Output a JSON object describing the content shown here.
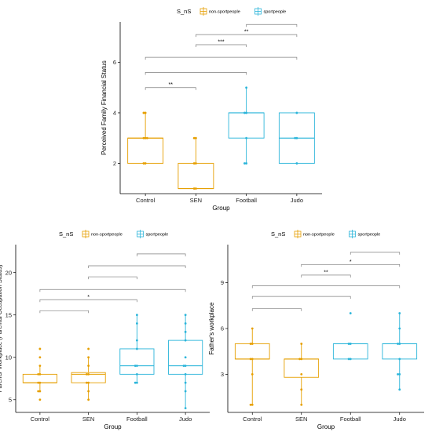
{
  "colors": {
    "non_sportpeople": "#E69F00",
    "sportpeople": "#2BB5DA",
    "bracket": "#7f7f7f"
  },
  "chart_data": [
    {
      "type": "box",
      "title": "",
      "legend": {
        "title": "S_nS",
        "placement": "top",
        "entries": [
          "non-sportpeople",
          "sportpeople"
        ]
      },
      "xlabel": "Group",
      "ylabel": "Perceived Family Financial Status",
      "categories": [
        "Control",
        "SEN",
        "Football",
        "Judo"
      ],
      "ylim": [
        0.8,
        7.6
      ],
      "yticks": [
        2,
        4,
        6
      ],
      "boxes": [
        {
          "category": "Control",
          "group": "non-sportpeople",
          "min": 2,
          "q1": 2,
          "median": 3,
          "q3": 3,
          "max": 4
        },
        {
          "category": "SEN",
          "group": "non-sportpeople",
          "min": 1,
          "q1": 1,
          "median": 1,
          "q3": 2,
          "max": 3
        },
        {
          "category": "Football",
          "group": "sportpeople",
          "min": 2,
          "q1": 3,
          "median": 4,
          "q3": 4,
          "max": 5
        },
        {
          "category": "Judo",
          "group": "sportpeople",
          "min": 2,
          "q1": 2,
          "median": 3,
          "q3": 4,
          "max": 4
        }
      ],
      "points": [
        {
          "category": "Control",
          "values": [
            2,
            2,
            3,
            3,
            3,
            4,
            4
          ]
        },
        {
          "category": "SEN",
          "values": [
            1,
            1,
            2,
            2,
            3,
            3
          ]
        },
        {
          "category": "Football",
          "values": [
            2,
            2,
            3,
            4,
            4,
            5
          ]
        },
        {
          "category": "Judo",
          "values": [
            2,
            3,
            3,
            4
          ]
        }
      ],
      "comparisons": [
        {
          "from": "Control",
          "to": "SEN",
          "y": 5.0,
          "label": "**"
        },
        {
          "from": "Control",
          "to": "Football",
          "y": 5.6,
          "label": ""
        },
        {
          "from": "Control",
          "to": "Judo",
          "y": 6.2,
          "label": ""
        },
        {
          "from": "SEN",
          "to": "Football",
          "y": 6.7,
          "label": "***"
        },
        {
          "from": "SEN",
          "to": "Judo",
          "y": 7.1,
          "label": "**"
        },
        {
          "from": "Football",
          "to": "Judo",
          "y": 7.5,
          "label": ""
        }
      ]
    },
    {
      "type": "box",
      "title": "",
      "legend": {
        "title": "S_nS",
        "placement": "top",
        "entries": [
          "non-sportpeople",
          "sportpeople"
        ]
      },
      "xlabel": "Group",
      "ylabel": "Parents' Workplace (Parental Occupation Status)",
      "categories": [
        "Control",
        "SEN",
        "Football",
        "Judo"
      ],
      "ylim": [
        3.5,
        23.3
      ],
      "yticks": [
        5,
        10,
        15,
        20
      ],
      "boxes": [
        {
          "category": "Control",
          "group": "non-sportpeople",
          "min": 6,
          "q1": 7,
          "median": 7,
          "q3": 8,
          "max": 9
        },
        {
          "category": "SEN",
          "group": "non-sportpeople",
          "min": 5,
          "q1": 7,
          "median": 8,
          "q3": 8.2,
          "max": 10
        },
        {
          "category": "Football",
          "group": "sportpeople",
          "min": 7,
          "q1": 8,
          "median": 9,
          "q3": 11,
          "max": 15
        },
        {
          "category": "Judo",
          "group": "sportpeople",
          "min": 4,
          "q1": 8,
          "median": 9,
          "q3": 12,
          "max": 15
        }
      ],
      "points": [
        {
          "category": "Control",
          "values": [
            5,
            6,
            6,
            7,
            7,
            8,
            8,
            9,
            10,
            11
          ]
        },
        {
          "category": "SEN",
          "values": [
            5,
            6,
            7,
            7,
            8,
            8,
            9,
            10,
            11
          ]
        },
        {
          "category": "Football",
          "values": [
            7,
            7,
            8,
            9,
            9,
            11,
            12,
            14,
            15
          ]
        },
        {
          "category": "Judo",
          "values": [
            4,
            6,
            7,
            8,
            9,
            9,
            10,
            12,
            13,
            14,
            15
          ]
        }
      ],
      "comparisons": [
        {
          "from": "Control",
          "to": "SEN",
          "y": 15.5,
          "label": ""
        },
        {
          "from": "Control",
          "to": "Football",
          "y": 16.8,
          "label": "*"
        },
        {
          "from": "Control",
          "to": "Judo",
          "y": 18.0,
          "label": ""
        },
        {
          "from": "SEN",
          "to": "Football",
          "y": 19.5,
          "label": ""
        },
        {
          "from": "SEN",
          "to": "Judo",
          "y": 20.8,
          "label": ""
        },
        {
          "from": "Football",
          "to": "Judo",
          "y": 22.2,
          "label": ""
        }
      ]
    },
    {
      "type": "box",
      "title": "",
      "legend": {
        "title": "S_nS",
        "placement": "top",
        "entries": [
          "non-sportpeople",
          "sportpeople"
        ]
      },
      "xlabel": "Group",
      "ylabel": "Father's workplace",
      "categories": [
        "Control",
        "SEN",
        "Football",
        "Judo"
      ],
      "ylim": [
        0.5,
        11.5
      ],
      "yticks": [
        3,
        6,
        9
      ],
      "boxes": [
        {
          "category": "Control",
          "group": "non-sportpeople",
          "min": 1,
          "q1": 4,
          "median": 4,
          "q3": 5,
          "max": 6
        },
        {
          "category": "SEN",
          "group": "non-sportpeople",
          "min": 1,
          "q1": 2.8,
          "median": 4,
          "q3": 4,
          "max": 5
        },
        {
          "category": "Football",
          "group": "sportpeople",
          "min": 4,
          "q1": 4,
          "median": 5,
          "q3": 5,
          "max": 5
        },
        {
          "category": "Judo",
          "group": "sportpeople",
          "min": 2,
          "q1": 4,
          "median": 5,
          "q3": 5,
          "max": 7
        }
      ],
      "points": [
        {
          "category": "Control",
          "values": [
            1,
            1,
            3,
            4,
            4,
            5,
            5,
            6
          ]
        },
        {
          "category": "SEN",
          "values": [
            1,
            2,
            3,
            4,
            4,
            5
          ]
        },
        {
          "category": "Football",
          "values": [
            4,
            4,
            5,
            5,
            7
          ]
        },
        {
          "category": "Judo",
          "values": [
            2,
            3,
            3,
            4,
            5,
            5,
            6,
            7
          ]
        }
      ],
      "comparisons": [
        {
          "from": "Control",
          "to": "SEN",
          "y": 7.3,
          "label": ""
        },
        {
          "from": "Control",
          "to": "Football",
          "y": 8.1,
          "label": ""
        },
        {
          "from": "Control",
          "to": "Judo",
          "y": 8.8,
          "label": ""
        },
        {
          "from": "SEN",
          "to": "Football",
          "y": 9.5,
          "label": "**"
        },
        {
          "from": "SEN",
          "to": "Judo",
          "y": 10.2,
          "label": "*"
        },
        {
          "from": "Football",
          "to": "Judo",
          "y": 11.0,
          "label": ""
        }
      ]
    }
  ]
}
